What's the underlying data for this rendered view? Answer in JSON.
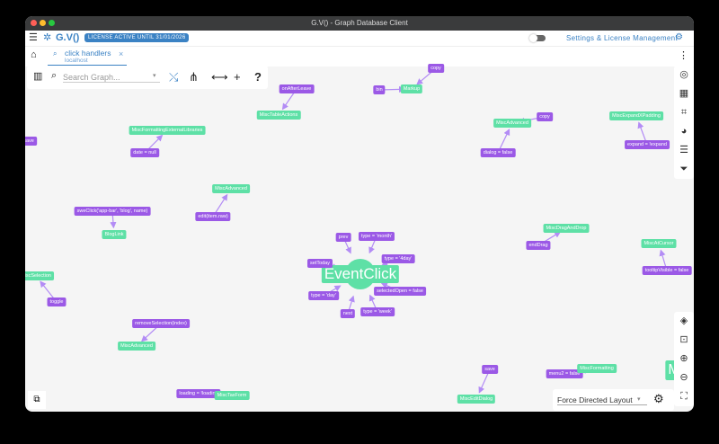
{
  "window": {
    "title": "G.V() - Graph Database Client"
  },
  "appbar": {
    "logo": "G.V()",
    "license_badge": "LICENSE ACTIVE UNTIL 31/01/2026",
    "settings_link": "Settings & License Management"
  },
  "tab": {
    "title": "click handlers",
    "subtitle": "localhost"
  },
  "toolbar": {
    "search_placeholder": "Search Graph...",
    "help": "?"
  },
  "layout_select": {
    "value": "Force Directed Layout"
  },
  "colors": {
    "vertex_method": "#9b59e6",
    "vertex_component": "#5ee0a6",
    "accent": "#3b82c4"
  },
  "graph": {
    "nodes": [
      {
        "id": "n1",
        "label": "copy",
        "type": "method"
      },
      {
        "id": "n2",
        "label": "bin",
        "type": "method"
      },
      {
        "id": "n3",
        "label": "Markup",
        "type": "component"
      },
      {
        "id": "n4",
        "label": "onAfterLeave",
        "type": "method"
      },
      {
        "id": "n5",
        "label": "MiscTableActions",
        "type": "component"
      },
      {
        "id": "n6",
        "label": "save",
        "type": "method"
      },
      {
        "id": "n7",
        "label": "MiscFormattingExternalLibraries",
        "type": "component"
      },
      {
        "id": "n8",
        "label": "date = null",
        "type": "method"
      },
      {
        "id": "n9",
        "label": "MiscAdvanced",
        "type": "component"
      },
      {
        "id": "n10",
        "label": "copy",
        "type": "method"
      },
      {
        "id": "n11",
        "label": "dialog = false",
        "type": "method"
      },
      {
        "id": "n12",
        "label": "MiscExpandXPadding",
        "type": "component"
      },
      {
        "id": "n13",
        "label": "expand = !expand",
        "type": "method"
      },
      {
        "id": "n14",
        "label": "MiscAdvanced",
        "type": "component"
      },
      {
        "id": "n15",
        "label": "edit(item.raw)",
        "type": "method"
      },
      {
        "id": "n16",
        "label": "sweClick('app-bar', 'blog', name)",
        "type": "method"
      },
      {
        "id": "n17",
        "label": "BlogLink",
        "type": "component"
      },
      {
        "id": "n18",
        "label": "EventClick",
        "type": "component"
      },
      {
        "id": "n19",
        "label": "prev",
        "type": "method"
      },
      {
        "id": "n20",
        "label": "type = 'month'",
        "type": "method"
      },
      {
        "id": "n21",
        "label": "type = '4day'",
        "type": "method"
      },
      {
        "id": "n22",
        "label": "setToday",
        "type": "method"
      },
      {
        "id": "n23",
        "label": "selectedOpen = false",
        "type": "method"
      },
      {
        "id": "n24",
        "label": "type = 'day'",
        "type": "method"
      },
      {
        "id": "n25",
        "label": "next",
        "type": "method"
      },
      {
        "id": "n26",
        "label": "type = 'week'",
        "type": "method"
      },
      {
        "id": "n27",
        "label": "MiscDragAndDrop",
        "type": "component"
      },
      {
        "id": "n28",
        "label": "endDrag",
        "type": "method"
      },
      {
        "id": "n29",
        "label": "MiscAtCursor",
        "type": "component"
      },
      {
        "id": "n30",
        "label": "tooltipVisible = false",
        "type": "method"
      },
      {
        "id": "n31",
        "label": "MiscSelection",
        "type": "component"
      },
      {
        "id": "n32",
        "label": "toggle",
        "type": "method"
      },
      {
        "id": "n33",
        "label": "removeSelection(index)",
        "type": "method"
      },
      {
        "id": "n34",
        "label": "MiscAdvanced",
        "type": "component"
      },
      {
        "id": "n35",
        "label": "loading = !loading",
        "type": "method"
      },
      {
        "id": "n36",
        "label": "MiscTaxForm",
        "type": "component"
      },
      {
        "id": "n37",
        "label": "save",
        "type": "method"
      },
      {
        "id": "n38",
        "label": "MiscEditDialog",
        "type": "component"
      },
      {
        "id": "n39",
        "label": "menu2 = false",
        "type": "method"
      },
      {
        "id": "n40",
        "label": "MiscFormatting",
        "type": "component"
      },
      {
        "id": "n41",
        "label": "M",
        "type": "component"
      }
    ],
    "edges": [
      [
        "n1",
        "n3"
      ],
      [
        "n2",
        "n3"
      ],
      [
        "n4",
        "n5"
      ],
      [
        "n8",
        "n7"
      ],
      [
        "n10",
        "n9"
      ],
      [
        "n11",
        "n9"
      ],
      [
        "n13",
        "n12"
      ],
      [
        "n15",
        "n14"
      ],
      [
        "n16",
        "n17"
      ],
      [
        "n19",
        "n18"
      ],
      [
        "n20",
        "n18"
      ],
      [
        "n21",
        "n18"
      ],
      [
        "n22",
        "n18"
      ],
      [
        "n23",
        "n18"
      ],
      [
        "n24",
        "n18"
      ],
      [
        "n25",
        "n18"
      ],
      [
        "n26",
        "n18"
      ],
      [
        "n28",
        "n27"
      ],
      [
        "n30",
        "n29"
      ],
      [
        "n32",
        "n31"
      ],
      [
        "n33",
        "n34"
      ],
      [
        "n35",
        "n36"
      ],
      [
        "n37",
        "n38"
      ],
      [
        "n39",
        "n40"
      ]
    ]
  }
}
